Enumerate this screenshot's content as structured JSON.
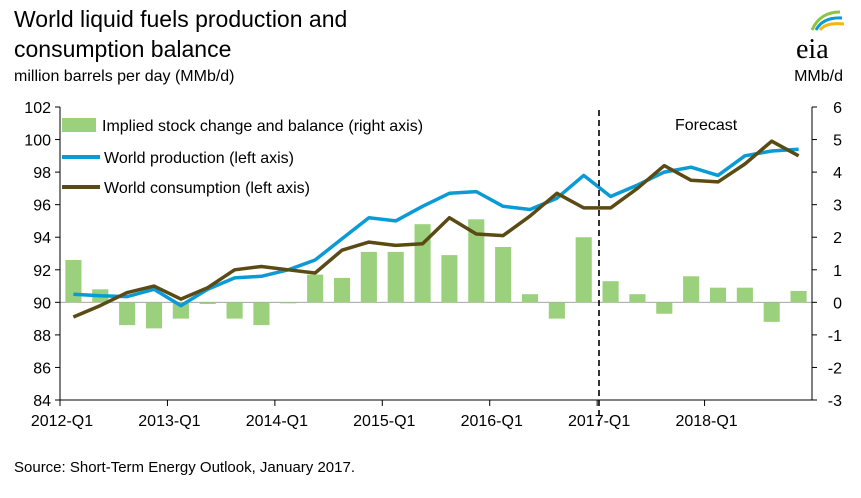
{
  "title_line1": "World liquid fuels production and",
  "title_line2": "consumption balance",
  "left_unit": "million barrels per day (MMb/d)",
  "right_unit": "MMb/d",
  "logo_text": "eia",
  "source": "Source: Short-Term Energy Outlook, January 2017.",
  "forecast_label": "Forecast",
  "colors": {
    "bar": "#9bd17c",
    "production": "#0a9bd6",
    "consumption": "#5a4a14"
  },
  "chart_data": {
    "type": "bar+line",
    "categories": [
      "2012-Q1",
      "2012-Q2",
      "2012-Q3",
      "2012-Q4",
      "2013-Q1",
      "2013-Q2",
      "2013-Q3",
      "2013-Q4",
      "2014-Q1",
      "2014-Q2",
      "2014-Q3",
      "2014-Q4",
      "2015-Q1",
      "2015-Q2",
      "2015-Q3",
      "2015-Q4",
      "2016-Q1",
      "2016-Q2",
      "2016-Q3",
      "2016-Q4",
      "2017-Q1",
      "2017-Q2",
      "2017-Q3",
      "2017-Q4",
      "2018-Q1",
      "2018-Q2",
      "2018-Q3",
      "2018-Q4"
    ],
    "x_tick_labels": [
      "2012-Q1",
      "2013-Q1",
      "2014-Q1",
      "2015-Q1",
      "2016-Q1",
      "2017-Q1",
      "2018-Q1"
    ],
    "y_left": {
      "min": 84,
      "max": 102,
      "step": 2,
      "ticks": [
        "84",
        "86",
        "88",
        "90",
        "92",
        "94",
        "96",
        "98",
        "100",
        "102"
      ]
    },
    "y_right": {
      "min": -3,
      "max": 6,
      "step": 1,
      "ticks": [
        "-3",
        "-2",
        "-1",
        "0",
        "1",
        "2",
        "3",
        "4",
        "5",
        "6"
      ]
    },
    "forecast_start": "2017-Q1",
    "series": [
      {
        "name": "Implied stock change and balance (right axis)",
        "type": "bar",
        "axis": "right",
        "values": [
          1.3,
          0.4,
          -0.7,
          -0.8,
          -0.5,
          -0.05,
          -0.5,
          -0.7,
          0.0,
          0.85,
          0.75,
          1.55,
          1.55,
          2.4,
          1.45,
          2.55,
          1.7,
          0.25,
          -0.5,
          2.0,
          0.65,
          0.25,
          -0.35,
          0.8,
          0.45,
          0.45,
          -0.6,
          0.35
        ]
      },
      {
        "name": "World production (left axis)",
        "type": "line",
        "axis": "left",
        "values": [
          90.5,
          90.4,
          90.35,
          90.8,
          89.8,
          90.8,
          91.5,
          91.6,
          92.0,
          92.6,
          93.9,
          95.2,
          95.0,
          95.9,
          96.7,
          96.8,
          95.9,
          95.7,
          96.4,
          97.8,
          96.5,
          97.2,
          98.0,
          98.3,
          97.8,
          99.0,
          99.3,
          99.4
        ]
      },
      {
        "name": "World consumption (left axis)",
        "type": "line",
        "axis": "left",
        "values": [
          89.1,
          89.8,
          90.6,
          91.0,
          90.2,
          90.9,
          92.0,
          92.2,
          92.0,
          91.8,
          93.2,
          93.7,
          93.5,
          93.6,
          95.2,
          94.2,
          94.1,
          95.3,
          96.7,
          95.8,
          95.8,
          97.0,
          98.4,
          97.5,
          97.4,
          98.5,
          99.9,
          99.0
        ]
      }
    ]
  }
}
